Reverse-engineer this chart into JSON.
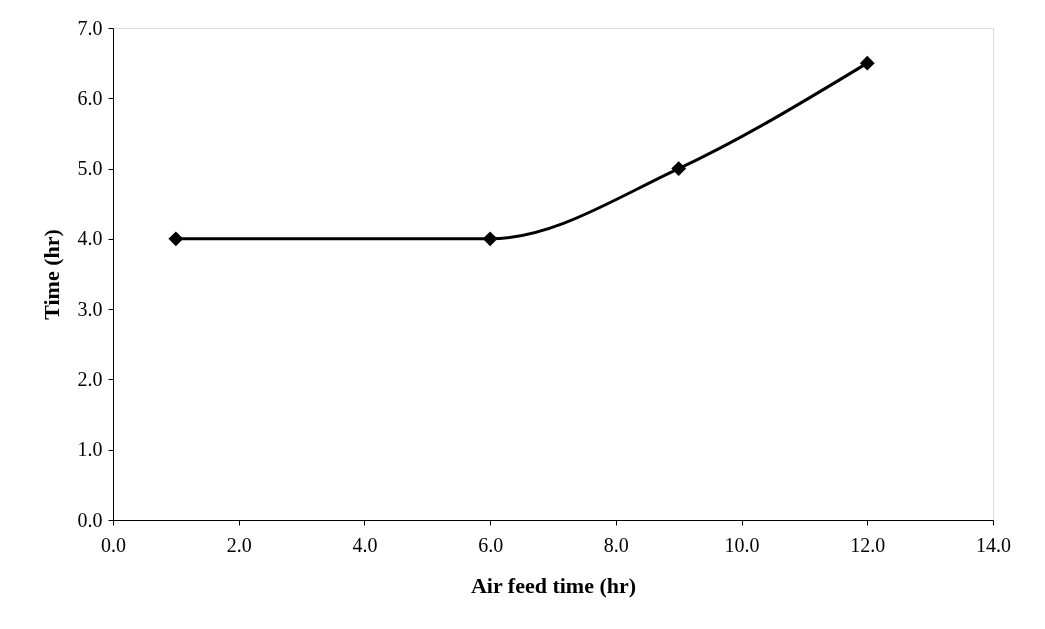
{
  "chart_data": {
    "type": "line",
    "xlabel": "Air feed time (hr)",
    "ylabel": "Time (hr)",
    "x": [
      1,
      6,
      9,
      12
    ],
    "series": [
      {
        "color": "#000000",
        "values": [
          4,
          4,
          5,
          6.5
        ]
      }
    ],
    "xlim": [
      0,
      14
    ],
    "xticks": [
      {
        "value": 0,
        "label": "0.0"
      },
      {
        "value": 2,
        "label": "2.0"
      },
      {
        "value": 4,
        "label": "4.0"
      },
      {
        "value": 6,
        "label": "6.0"
      },
      {
        "value": 8,
        "label": "8.0"
      },
      {
        "value": 10,
        "label": "10.0"
      },
      {
        "value": 12,
        "label": "12.0"
      },
      {
        "value": 14,
        "label": "14.0"
      }
    ],
    "ylim": [
      0,
      7
    ],
    "yticks": [
      {
        "value": 0,
        "label": "0.0"
      },
      {
        "value": 1,
        "label": "1.0"
      },
      {
        "value": 2,
        "label": "2.0"
      },
      {
        "value": 3,
        "label": "3.0"
      },
      {
        "value": 4,
        "label": "4.0"
      },
      {
        "value": 5,
        "label": "5.0"
      },
      {
        "value": 6,
        "label": "6.0"
      },
      {
        "value": 7,
        "label": "7.0"
      }
    ],
    "grid": false,
    "marker": "diamond",
    "line_style": "solid"
  }
}
